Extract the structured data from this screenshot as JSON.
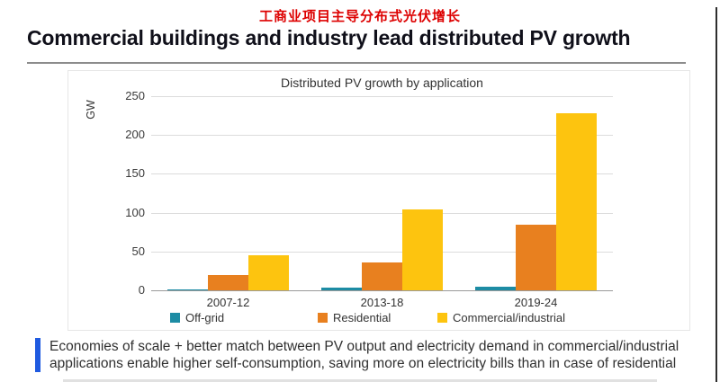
{
  "page": {
    "zh_title": "工商业项目主导分布式光伏增长",
    "heading": "Commercial buildings and industry lead distributed PV growth",
    "title_red": "#dd0000",
    "accent_blue": "#1f5ae0",
    "caption": [
      "Economies of scale + better match between PV output and electricity demand in commercial/industrial",
      "applications enable higher self-consumption, saving more on electricity bills than in case of residential"
    ]
  },
  "chart_data": {
    "type": "bar",
    "title": "Distributed PV growth by application",
    "ylabel": "GW",
    "categories": [
      "2007-12",
      "2013-18",
      "2019-24"
    ],
    "series": [
      {
        "name": "Off-grid",
        "color": "#1d8ca4",
        "values": [
          1,
          3,
          5
        ]
      },
      {
        "name": "Residential",
        "color": "#e8801f",
        "values": [
          20,
          36,
          85
        ]
      },
      {
        "name": "Commercial/industrial",
        "color": "#fdc40f",
        "values": [
          45,
          104,
          228
        ]
      }
    ],
    "ylim": [
      0,
      250
    ],
    "yticks": [
      0,
      50,
      100,
      150,
      200,
      250
    ],
    "grid": true,
    "legend_position": "bottom"
  }
}
